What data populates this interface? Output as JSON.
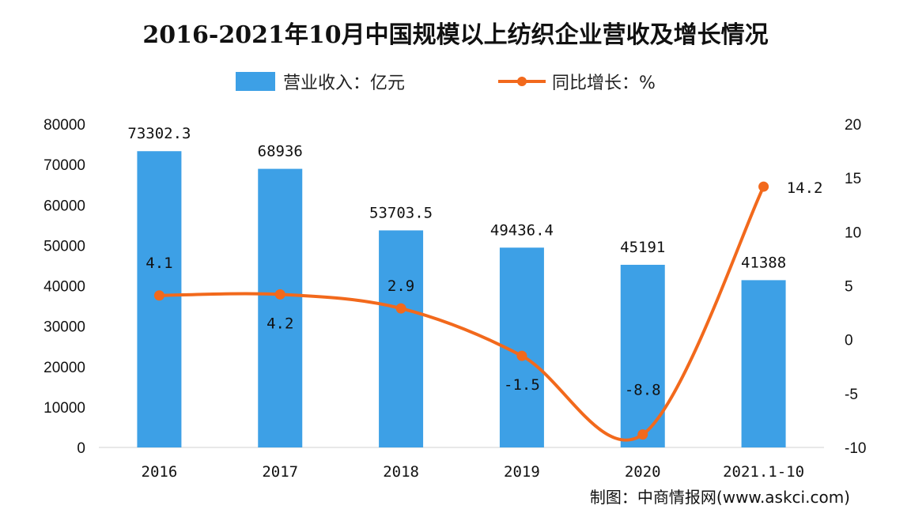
{
  "chart_data": {
    "type": "bar+line",
    "title": "2016-2021年10月中国规模以上纺织企业营收及增长情况",
    "categories": [
      "2016",
      "2017",
      "2018",
      "2019",
      "2020",
      "2021.1-10"
    ],
    "series": [
      {
        "name": "营业收入：亿元",
        "type": "bar",
        "axis": "left",
        "color": "#3da0e6",
        "values": [
          73302.3,
          68936,
          53703.5,
          49436.4,
          45191,
          41388
        ],
        "labels": [
          "73302.3",
          "68936",
          "53703.5",
          "49436.4",
          "45191",
          "41388"
        ]
      },
      {
        "name": "同比增长：%",
        "type": "line",
        "axis": "right",
        "color": "#f2691c",
        "values": [
          4.1,
          4.2,
          2.9,
          -1.5,
          -8.8,
          14.2
        ],
        "labels": [
          "4.1",
          "4.2",
          "2.9",
          "-1.5",
          "-8.8",
          "14.2"
        ]
      }
    ],
    "y_left": {
      "range": [
        0,
        80000
      ],
      "ticks": [
        "0",
        "10000",
        "20000",
        "30000",
        "40000",
        "50000",
        "60000",
        "70000",
        "80000"
      ]
    },
    "y_right": {
      "range": [
        -10,
        20
      ],
      "ticks": [
        "-10",
        "-5",
        "0",
        "5",
        "10",
        "15",
        "20"
      ]
    },
    "legend": "top",
    "grid": false,
    "source": "制图：中商情报网(www.askci.com)"
  }
}
